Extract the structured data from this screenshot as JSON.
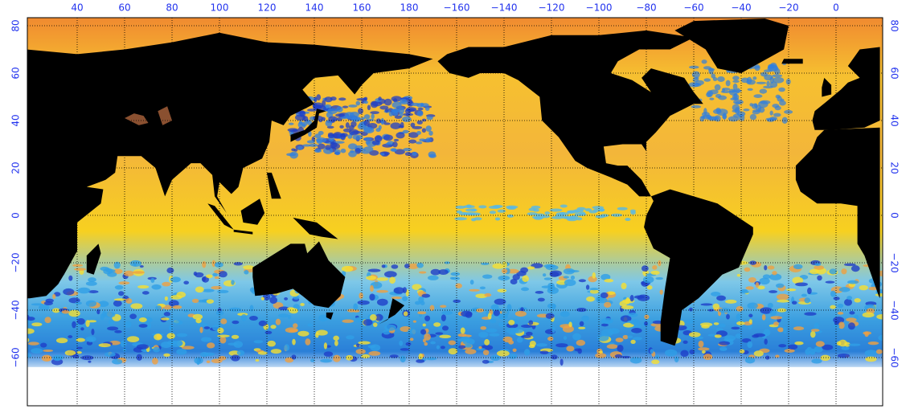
{
  "top_axis": {
    "labels": [
      "40",
      "60",
      "80",
      "100",
      "120",
      "140",
      "160",
      "180",
      "−160",
      "−140",
      "−120",
      "−100",
      "−80",
      "−60",
      "−40",
      "−20",
      "0"
    ]
  },
  "left_axis": {
    "labels": [
      "80",
      "60",
      "40",
      "20",
      "0",
      "−20",
      "−40",
      "−60"
    ]
  },
  "right_axis": {
    "labels": [
      "80",
      "60",
      "40",
      "20",
      "0",
      "−20",
      "−40",
      "−60"
    ]
  }
}
